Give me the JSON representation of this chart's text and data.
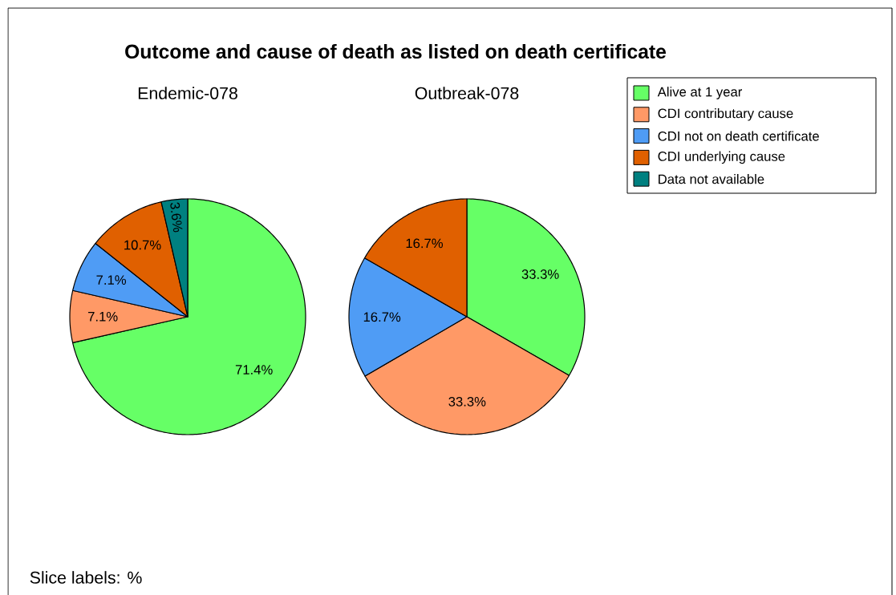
{
  "chart_data": [
    {
      "type": "pie",
      "title": "Outcome and cause of death as listed on death certificate",
      "subtitle": "Endemic-078",
      "categories": [
        "Alive at 1 year",
        "CDI contributary cause",
        "CDI not on death certificate",
        "CDI underlying cause",
        "Data not available"
      ],
      "values": [
        71.4,
        7.1,
        7.1,
        10.7,
        3.6
      ],
      "colors": [
        "#66ff66",
        "#ff9966",
        "#4f9cf5",
        "#e06000",
        "#008080"
      ],
      "value_labels": [
        "71.4%",
        "7.1%",
        "7.1%",
        "10.7%",
        "3.6%"
      ],
      "legend": "right",
      "annotations": [
        "Slice labels: %"
      ]
    },
    {
      "type": "pie",
      "subtitle": "Outbreak-078",
      "values": [
        33.3,
        33.3,
        16.7,
        16.7
      ],
      "colors": [
        "#66ff66",
        "#ff9966",
        "#4f9cf5",
        "#e06000"
      ],
      "value_labels": [
        "33.3%",
        "33.3%",
        "16.7%",
        "16.7%"
      ]
    }
  ]
}
